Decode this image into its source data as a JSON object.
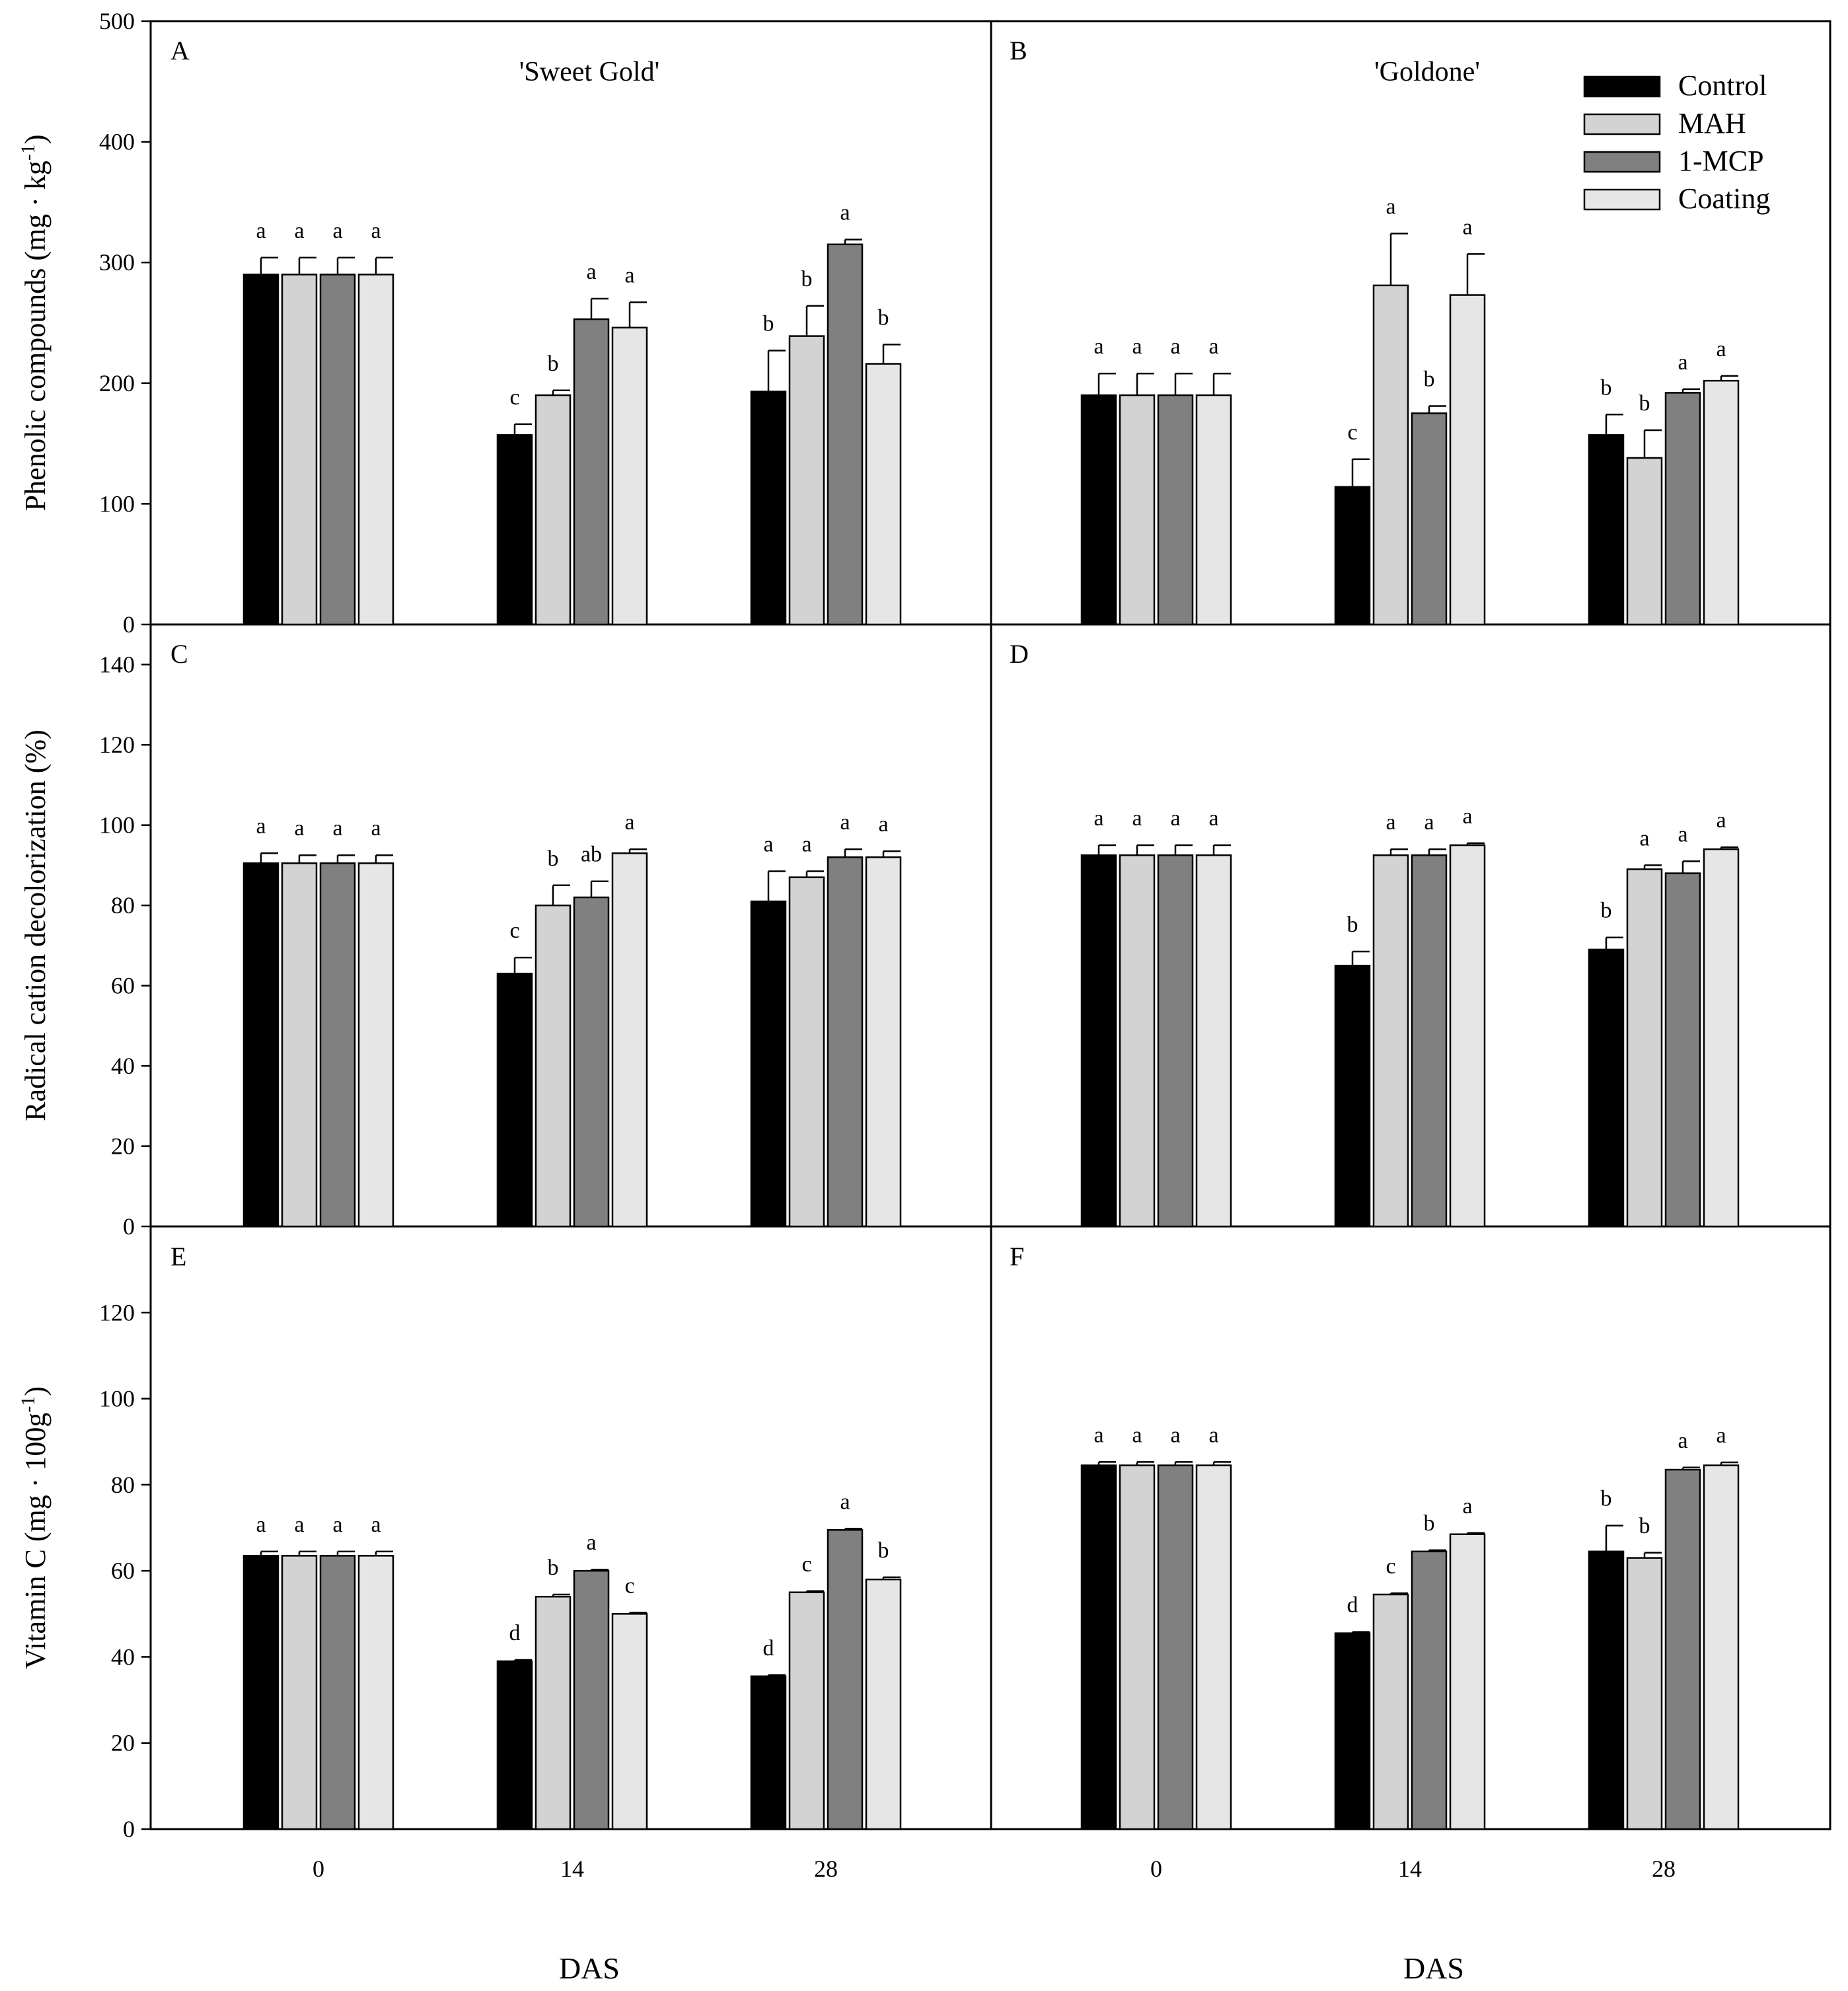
{
  "figure": {
    "xlabel": "DAS",
    "treatments": [
      "Control",
      "MAH",
      "1-MCP",
      "Coating"
    ],
    "treatment_colors": [
      "#000000",
      "#d3d3d3",
      "#808080",
      "#e6e6e6"
    ],
    "cultivars": [
      "'Sweet Gold'",
      "'Goldone'"
    ],
    "rows": [
      {
        "ylabel_html": "Phenolic compounds (mg · kg<tspan baseline-shift='super' font-size='30'>-1</tspan>)",
        "ylabel": "Phenolic compounds (mg · kg-1)",
        "ylim": [
          0,
          500
        ],
        "ticks": [
          0,
          100,
          200,
          300,
          400,
          500
        ]
      },
      {
        "ylabel": "Radical cation decolorization (%)",
        "ylim": [
          0,
          150
        ],
        "ticks": [
          0,
          20,
          40,
          60,
          80,
          100,
          120,
          140
        ]
      },
      {
        "ylabel": "Vitamin C (mg · 100g-1)",
        "ylim": [
          0,
          140
        ],
        "ticks": [
          0,
          20,
          40,
          60,
          80,
          100,
          120
        ]
      }
    ]
  },
  "chart_data": [
    {
      "panel": "A",
      "type": "bar",
      "title": "'Sweet Gold'",
      "ylabel": "Phenolic compounds (mg · kg-1)",
      "xlabel": "DAS",
      "ylim": [
        0,
        500
      ],
      "categories": [
        "0",
        "14",
        "28"
      ],
      "series": [
        {
          "name": "Control",
          "values": [
            290,
            157,
            193
          ],
          "errors": [
            14,
            9,
            34
          ],
          "letters": [
            "a",
            "c",
            "b"
          ]
        },
        {
          "name": "MAH",
          "values": [
            290,
            190,
            239
          ],
          "errors": [
            14,
            4,
            25
          ],
          "letters": [
            "a",
            "b",
            "b"
          ]
        },
        {
          "name": "1-MCP",
          "values": [
            290,
            253,
            315
          ],
          "errors": [
            14,
            17,
            4
          ],
          "letters": [
            "a",
            "a",
            "a"
          ]
        },
        {
          "name": "Coating",
          "values": [
            290,
            246,
            216
          ],
          "errors": [
            14,
            21,
            16
          ],
          "letters": [
            "a",
            "a",
            "b"
          ]
        }
      ]
    },
    {
      "panel": "B",
      "type": "bar",
      "title": "'Goldone'",
      "ylabel": "Phenolic compounds (mg · kg-1)",
      "xlabel": "DAS",
      "ylim": [
        0,
        500
      ],
      "categories": [
        "0",
        "14",
        "28"
      ],
      "series": [
        {
          "name": "Control",
          "values": [
            190,
            114,
            157
          ],
          "errors": [
            18,
            23,
            17
          ],
          "letters": [
            "a",
            "c",
            "b"
          ]
        },
        {
          "name": "MAH",
          "values": [
            190,
            281,
            138
          ],
          "errors": [
            18,
            43,
            23
          ],
          "letters": [
            "a",
            "a",
            "b"
          ]
        },
        {
          "name": "1-MCP",
          "values": [
            190,
            175,
            192
          ],
          "errors": [
            18,
            6,
            3
          ],
          "letters": [
            "a",
            "b",
            "a"
          ]
        },
        {
          "name": "Coating",
          "values": [
            190,
            273,
            202
          ],
          "errors": [
            18,
            34,
            4
          ],
          "letters": [
            "a",
            "a",
            "a"
          ]
        }
      ]
    },
    {
      "panel": "C",
      "type": "bar",
      "ylabel": "Radical cation decolorization (%)",
      "xlabel": "DAS",
      "ylim": [
        0,
        150
      ],
      "categories": [
        "0",
        "14",
        "28"
      ],
      "series": [
        {
          "name": "Control",
          "values": [
            90.5,
            63,
            81
          ],
          "errors": [
            2.5,
            4,
            7.5
          ],
          "letters": [
            "a",
            "c",
            "a"
          ]
        },
        {
          "name": "MAH",
          "values": [
            90.5,
            80,
            87
          ],
          "errors": [
            2,
            5,
            1.5
          ],
          "letters": [
            "a",
            "b",
            "a"
          ]
        },
        {
          "name": "1-MCP",
          "values": [
            90.5,
            82,
            92
          ],
          "errors": [
            2,
            4,
            2
          ],
          "letters": [
            "a",
            "ab",
            "a"
          ]
        },
        {
          "name": "Coating",
          "values": [
            90.5,
            93,
            92
          ],
          "errors": [
            2,
            1,
            1.5
          ],
          "letters": [
            "a",
            "a",
            "a"
          ]
        }
      ]
    },
    {
      "panel": "D",
      "type": "bar",
      "ylabel": "Radical cation decolorization (%)",
      "xlabel": "DAS",
      "ylim": [
        0,
        150
      ],
      "categories": [
        "0",
        "14",
        "28"
      ],
      "series": [
        {
          "name": "Control",
          "values": [
            92.5,
            65,
            69
          ],
          "errors": [
            2.5,
            3.5,
            3
          ],
          "letters": [
            "a",
            "b",
            "b"
          ]
        },
        {
          "name": "MAH",
          "values": [
            92.5,
            92.5,
            89
          ],
          "errors": [
            2.5,
            1.5,
            1
          ],
          "letters": [
            "a",
            "a",
            "a"
          ]
        },
        {
          "name": "1-MCP",
          "values": [
            92.5,
            92.5,
            88
          ],
          "errors": [
            2.5,
            1.5,
            3
          ],
          "letters": [
            "a",
            "a",
            "a"
          ]
        },
        {
          "name": "Coating",
          "values": [
            92.5,
            95,
            94
          ],
          "errors": [
            2.5,
            0.5,
            0.5
          ],
          "letters": [
            "a",
            "a",
            "a"
          ]
        }
      ]
    },
    {
      "panel": "E",
      "type": "bar",
      "ylabel": "Vitamin C (mg · 100g-1)",
      "xlabel": "DAS",
      "ylim": [
        0,
        140
      ],
      "categories": [
        "0",
        "14",
        "28"
      ],
      "series": [
        {
          "name": "Control",
          "values": [
            63.5,
            39,
            35.5
          ],
          "errors": [
            1,
            0.3,
            0.3
          ],
          "letters": [
            "a",
            "d",
            "d"
          ]
        },
        {
          "name": "MAH",
          "values": [
            63.5,
            54,
            55
          ],
          "errors": [
            1,
            0.5,
            0.3
          ],
          "letters": [
            "a",
            "b",
            "c"
          ]
        },
        {
          "name": "1-MCP",
          "values": [
            63.5,
            60,
            69.5
          ],
          "errors": [
            1,
            0.3,
            0.3
          ],
          "letters": [
            "a",
            "a",
            "a"
          ]
        },
        {
          "name": "Coating",
          "values": [
            63.5,
            50,
            58
          ],
          "errors": [
            1,
            0.3,
            0.5
          ],
          "letters": [
            "a",
            "c",
            "b"
          ]
        }
      ]
    },
    {
      "panel": "F",
      "type": "bar",
      "ylabel": "Vitamin C (mg · 100g-1)",
      "xlabel": "DAS",
      "ylim": [
        0,
        140
      ],
      "categories": [
        "0",
        "14",
        "28"
      ],
      "series": [
        {
          "name": "Control",
          "values": [
            84.5,
            45.5,
            64.5
          ],
          "errors": [
            0.8,
            0.3,
            6
          ],
          "letters": [
            "a",
            "d",
            "b"
          ]
        },
        {
          "name": "MAH",
          "values": [
            84.5,
            54.5,
            63
          ],
          "errors": [
            0.8,
            0.3,
            1.2
          ],
          "letters": [
            "a",
            "c",
            "b"
          ]
        },
        {
          "name": "1-MCP",
          "values": [
            84.5,
            64.5,
            83.5
          ],
          "errors": [
            0.8,
            0.3,
            0.5
          ],
          "letters": [
            "a",
            "b",
            "a"
          ]
        },
        {
          "name": "Coating",
          "values": [
            84.5,
            68.5,
            84.5
          ],
          "errors": [
            0.8,
            0.3,
            0.7
          ],
          "letters": [
            "a",
            "a",
            "a"
          ]
        }
      ]
    }
  ]
}
